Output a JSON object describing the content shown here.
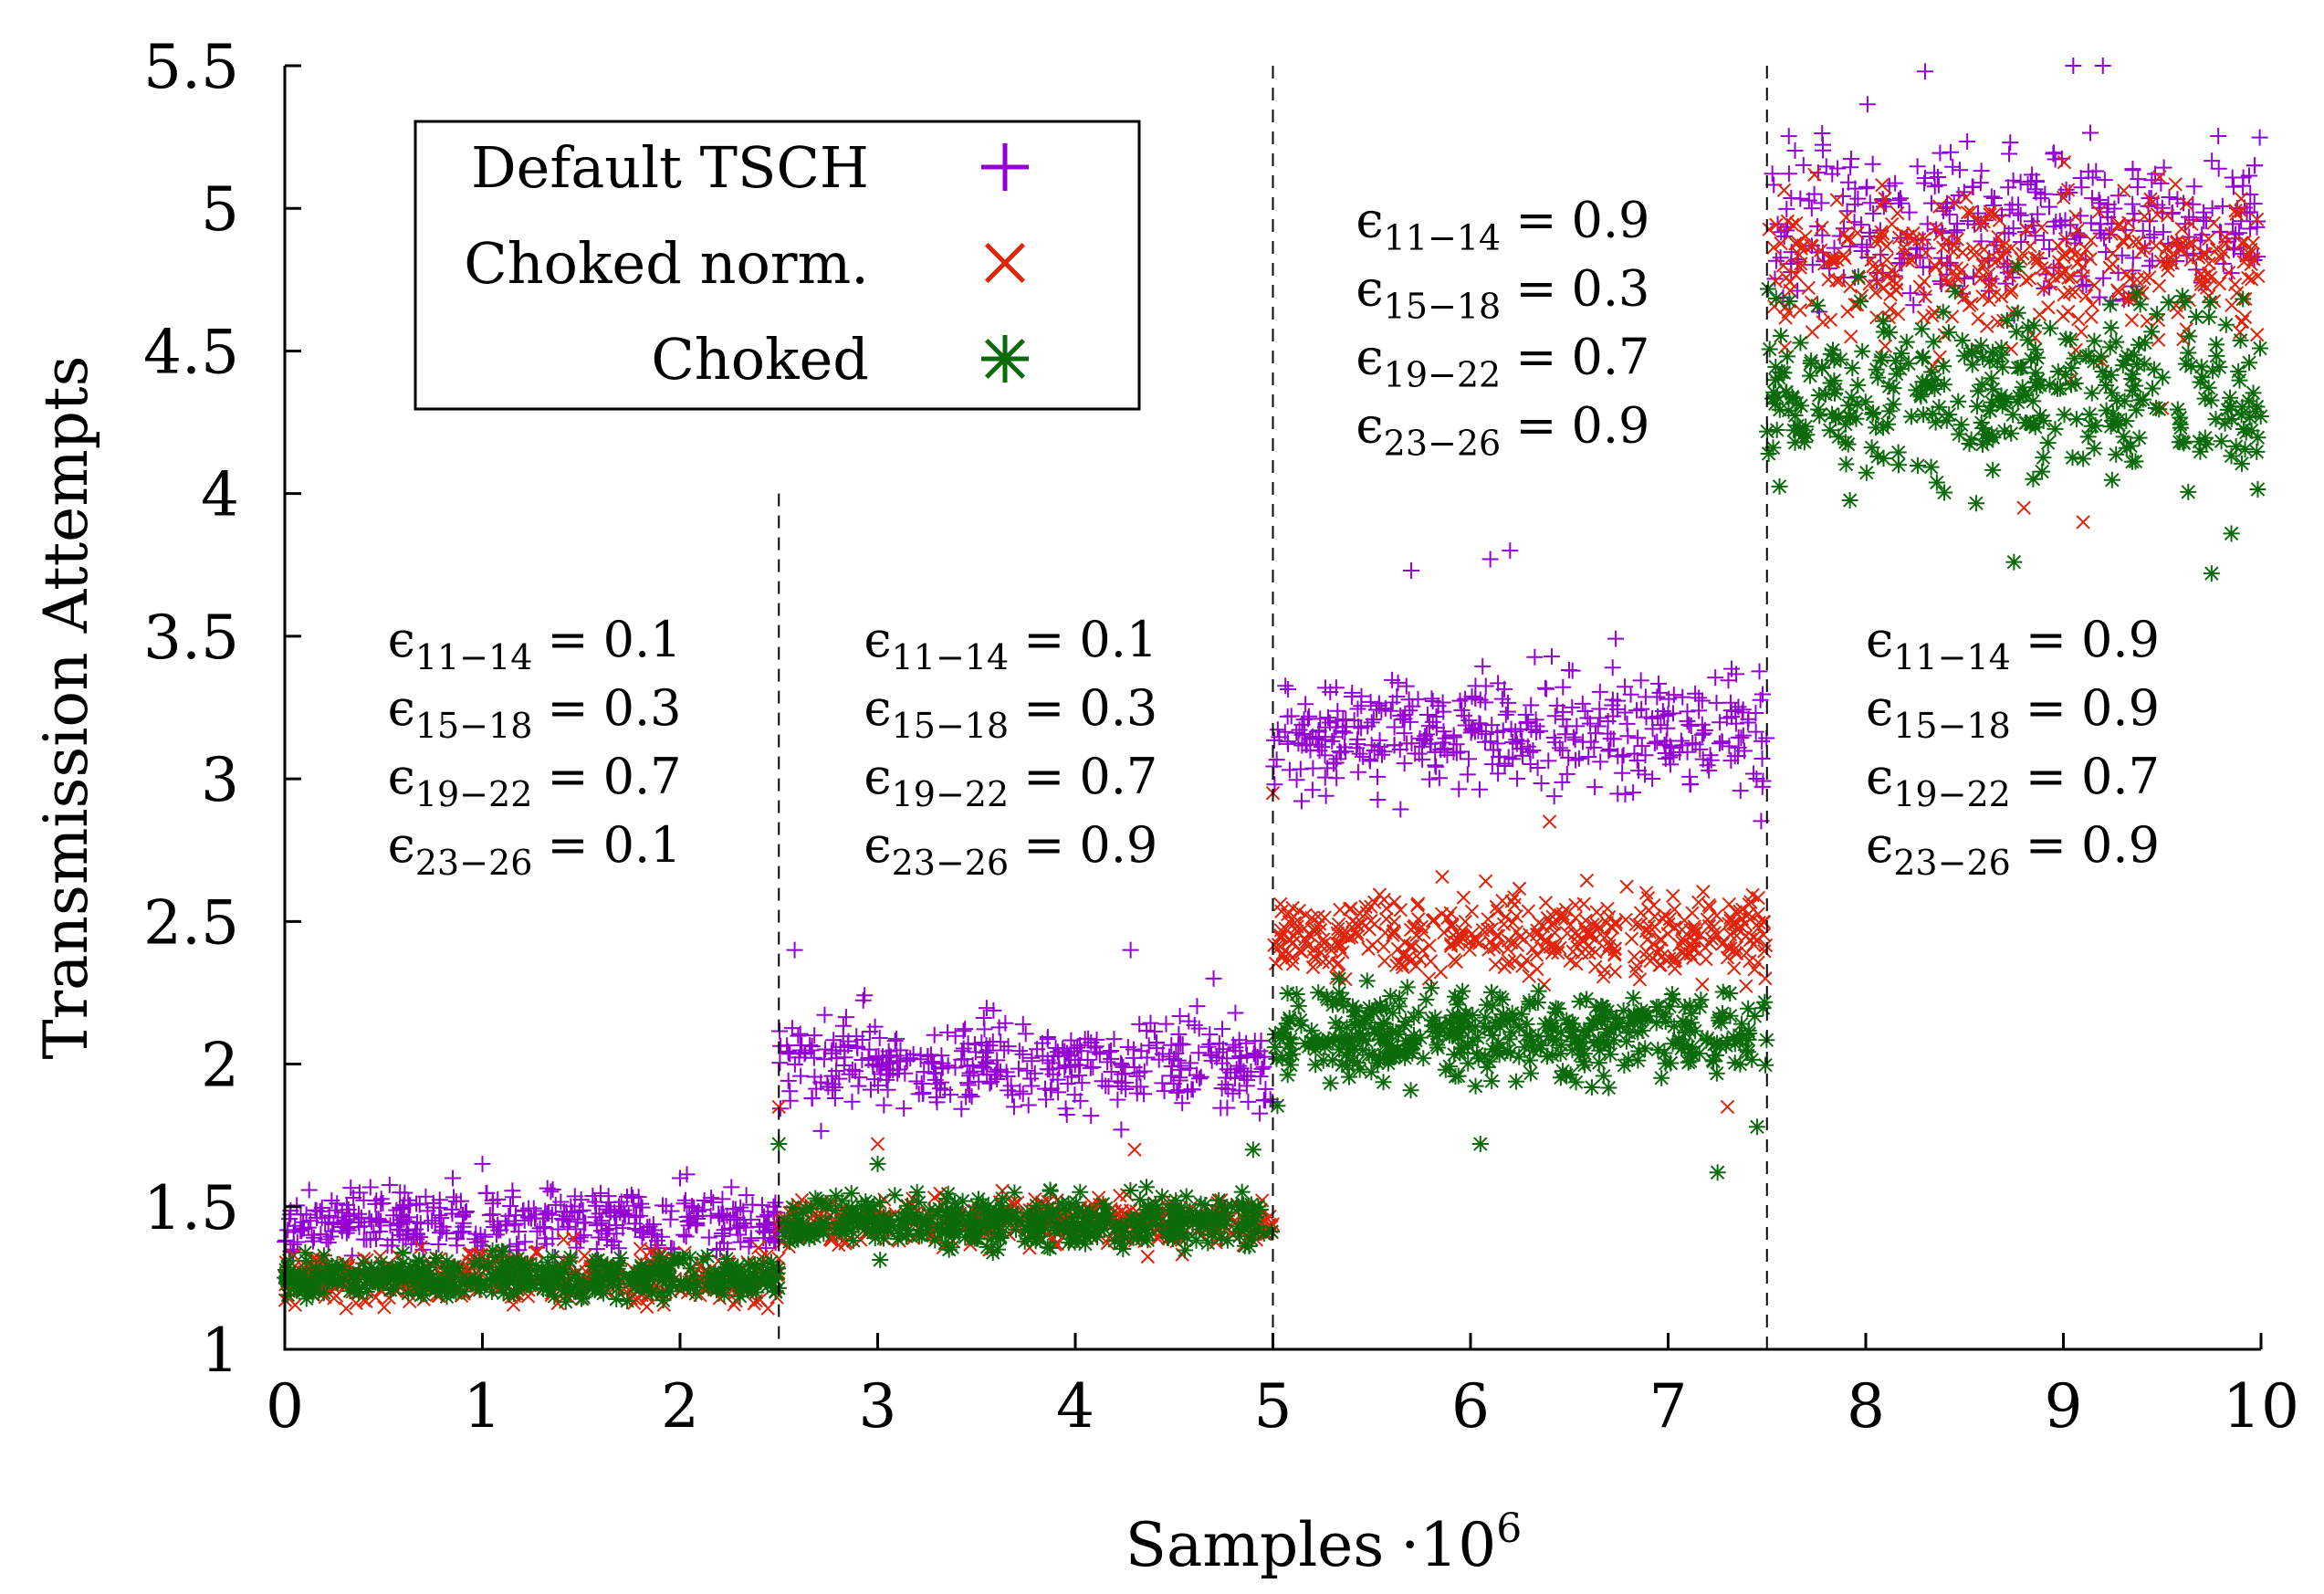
{
  "chart_data": {
    "type": "scatter",
    "xlabel": "Samples",
    "xlabel_multiplier": "·10",
    "xlabel_exponent": "6",
    "ylabel": "Transmission Attempts",
    "xlim": [
      0,
      10
    ],
    "ylim": [
      1,
      5.5
    ],
    "x_ticks": [
      0,
      1,
      2,
      3,
      4,
      5,
      6,
      7,
      8,
      9,
      10
    ],
    "x_tick_labels": [
      "0",
      "1",
      "2",
      "3",
      "4",
      "5",
      "6",
      "7",
      "8",
      "9",
      "10"
    ],
    "y_ticks": [
      1,
      1.5,
      2,
      2.5,
      3,
      3.5,
      4,
      4.5,
      5,
      5.5
    ],
    "y_tick_labels": [
      "1",
      "1.5",
      "2",
      "2.5",
      "3",
      "3.5",
      "4",
      "4.5",
      "5",
      "5.5"
    ],
    "grid": false,
    "legend_position": "top-left",
    "phase_boundaries": [
      {
        "x": 2.5,
        "y_top": 4.0
      },
      {
        "x": 5.0,
        "y_top": 5.5
      },
      {
        "x": 7.5,
        "y_top": 5.5
      }
    ],
    "series": [
      {
        "name": "Default TSCH",
        "marker": "plus",
        "color": "#9400D3",
        "segments": [
          {
            "x_range": [
              0,
              2.5
            ],
            "mean": 1.45,
            "spread": 0.09,
            "min": 1.3,
            "max": 1.65,
            "outliers": [
              [
                0.85,
                1.6
              ],
              [
                1.0,
                1.65
              ],
              [
                2.0,
                1.6
              ]
            ]
          },
          {
            "x_range": [
              2.5,
              5.0
            ],
            "mean": 2.0,
            "spread": 0.13,
            "min": 1.65,
            "max": 2.4,
            "outliers": [
              [
                2.58,
                2.4
              ],
              [
                4.28,
                2.4
              ],
              [
                4.7,
                2.3
              ]
            ]
          },
          {
            "x_range": [
              5.0,
              7.5
            ],
            "mean": 3.15,
            "spread": 0.18,
            "min": 2.75,
            "max": 3.8,
            "outliers": [
              [
                6.2,
                3.8
              ],
              [
                6.1,
                3.77
              ],
              [
                5.7,
                3.73
              ]
            ]
          },
          {
            "x_range": [
              7.5,
              10.0
            ],
            "mean": 4.95,
            "spread": 0.24,
            "min": 4.2,
            "max": 5.5,
            "outliers": [
              [
                8.3,
                5.48
              ],
              [
                9.05,
                5.5
              ],
              [
                9.2,
                5.5
              ]
            ]
          }
        ]
      },
      {
        "name": "Choked norm.",
        "marker": "cross",
        "color": "#E0240B",
        "segments": [
          {
            "x_range": [
              0,
              2.5
            ],
            "mean": 1.25,
            "spread": 0.07,
            "min": 1.13,
            "max": 1.42,
            "outliers": []
          },
          {
            "x_range": [
              2.5,
              5.0
            ],
            "mean": 1.45,
            "spread": 0.07,
            "min": 1.28,
            "max": 1.85,
            "outliers": [
              [
                2.5,
                1.85
              ],
              [
                4.3,
                1.7
              ],
              [
                3.0,
                1.72
              ]
            ]
          },
          {
            "x_range": [
              5.0,
              7.5
            ],
            "mean": 2.45,
            "spread": 0.12,
            "min": 1.85,
            "max": 2.95,
            "outliers": [
              [
                5.0,
                2.95
              ],
              [
                6.4,
                2.85
              ],
              [
                7.3,
                1.85
              ]
            ]
          },
          {
            "x_range": [
              7.5,
              10.0
            ],
            "mean": 4.8,
            "spread": 0.22,
            "min": 3.9,
            "max": 5.35,
            "outliers": [
              [
                9.1,
                3.9
              ],
              [
                8.8,
                3.95
              ],
              [
                9.5,
                4.3
              ]
            ]
          }
        ]
      },
      {
        "name": "Choked",
        "marker": "asterisk",
        "color": "#0B6B0B",
        "segments": [
          {
            "x_range": [
              0,
              2.5
            ],
            "mean": 1.25,
            "spread": 0.06,
            "min": 1.12,
            "max": 1.38,
            "outliers": []
          },
          {
            "x_range": [
              2.5,
              5.0
            ],
            "mean": 1.45,
            "spread": 0.07,
            "min": 1.25,
            "max": 1.72,
            "outliers": [
              [
                2.5,
                1.72
              ],
              [
                3.0,
                1.65
              ],
              [
                4.9,
                1.7
              ]
            ]
          },
          {
            "x_range": [
              5.0,
              7.5
            ],
            "mean": 2.1,
            "spread": 0.12,
            "min": 1.62,
            "max": 2.35,
            "outliers": [
              [
                7.25,
                1.62
              ],
              [
                6.05,
                1.72
              ],
              [
                7.45,
                1.78
              ]
            ]
          },
          {
            "x_range": [
              7.5,
              10.0
            ],
            "mean": 4.35,
            "spread": 0.25,
            "min": 3.72,
            "max": 5.05,
            "outliers": [
              [
                9.75,
                3.72
              ],
              [
                8.75,
                3.76
              ],
              [
                9.85,
                3.86
              ]
            ]
          }
        ]
      }
    ],
    "annotations": [
      {
        "anchor_x": 0.52,
        "anchor_y": 3.43,
        "lines": [
          {
            "sub": "11−14",
            "value": "0.1"
          },
          {
            "sub": "15−18",
            "value": "0.3"
          },
          {
            "sub": "19−22",
            "value": "0.7"
          },
          {
            "sub": "23−26",
            "value": "0.1"
          }
        ]
      },
      {
        "anchor_x": 2.93,
        "anchor_y": 3.43,
        "lines": [
          {
            "sub": "11−14",
            "value": "0.1"
          },
          {
            "sub": "15−18",
            "value": "0.3"
          },
          {
            "sub": "19−22",
            "value": "0.7"
          },
          {
            "sub": "23−26",
            "value": "0.9"
          }
        ]
      },
      {
        "anchor_x": 5.42,
        "anchor_y": 4.9,
        "lines": [
          {
            "sub": "11−14",
            "value": "0.9"
          },
          {
            "sub": "15−18",
            "value": "0.3"
          },
          {
            "sub": "19−22",
            "value": "0.7"
          },
          {
            "sub": "23−26",
            "value": "0.9"
          }
        ]
      },
      {
        "anchor_x": 8.0,
        "anchor_y": 3.43,
        "lines": [
          {
            "sub": "11−14",
            "value": "0.9"
          },
          {
            "sub": "15−18",
            "value": "0.9"
          },
          {
            "sub": "19−22",
            "value": "0.7"
          },
          {
            "sub": "23−26",
            "value": "0.9"
          }
        ]
      }
    ],
    "annotation_symbol": "ϵ",
    "annotation_equals": "="
  }
}
